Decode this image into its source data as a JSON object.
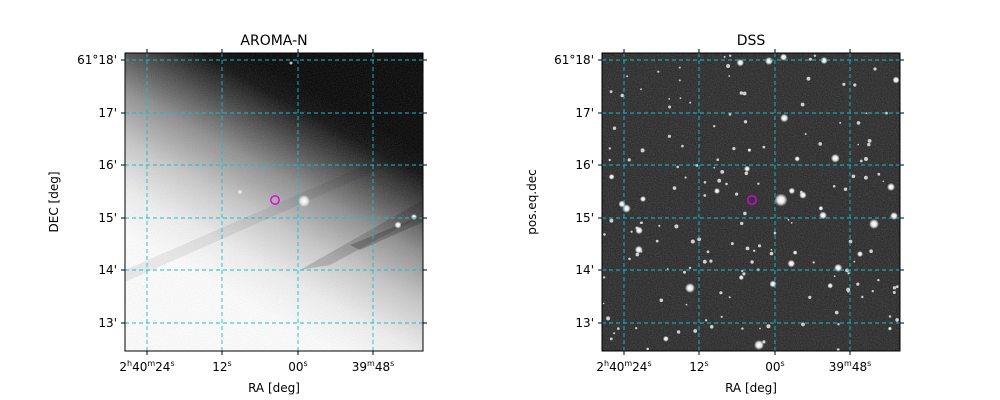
{
  "panels": [
    {
      "id": "left",
      "title": "AROMA-N",
      "xlabel": "RA [deg]",
      "ylabel": "DEC [deg]",
      "image_type": "grayscale sky image with bright diagonal galaxy band in lower-left, dark upper-right",
      "x_ticks": [
        {
          "pre": "2",
          "sup1": "h",
          "mid": "40",
          "sup2": "m",
          "main": "24",
          "sup3": "s"
        },
        {
          "pre": "",
          "sup1": "",
          "mid": "",
          "sup2": "",
          "main": "12",
          "sup3": "s"
        },
        {
          "pre": "",
          "sup1": "",
          "mid": "",
          "sup2": "",
          "main": "00",
          "sup3": "s"
        },
        {
          "pre": "",
          "sup1": "",
          "mid": "39",
          "sup2": "m",
          "main": "48",
          "sup3": "s"
        }
      ],
      "y_ticks": [
        "61°18'",
        "17'",
        "16'",
        "15'",
        "14'",
        "13'"
      ],
      "marker": "magenta circle"
    },
    {
      "id": "right",
      "title": "DSS",
      "xlabel": "RA [deg]",
      "ylabel": "pos.eq.dec",
      "image_type": "grayscale DSS star field, dark background with scattered stars",
      "x_ticks": [
        {
          "pre": "2",
          "sup1": "h",
          "mid": "40",
          "sup2": "m",
          "main": "24",
          "sup3": "s"
        },
        {
          "pre": "",
          "sup1": "",
          "mid": "",
          "sup2": "",
          "main": "12",
          "sup3": "s"
        },
        {
          "pre": "",
          "sup1": "",
          "mid": "",
          "sup2": "",
          "main": "00",
          "sup3": "s"
        },
        {
          "pre": "",
          "sup1": "",
          "mid": "39",
          "sup2": "m",
          "main": "48",
          "sup3": "s"
        }
      ],
      "y_ticks": [
        "61°18'",
        "17'",
        "16'",
        "15'",
        "14'",
        "13'"
      ],
      "marker": "magenta circle"
    }
  ],
  "colors": {
    "grid": "#17becf",
    "marker": "#e000e0",
    "axes": "#000000"
  },
  "grid": "dashed cyan"
}
